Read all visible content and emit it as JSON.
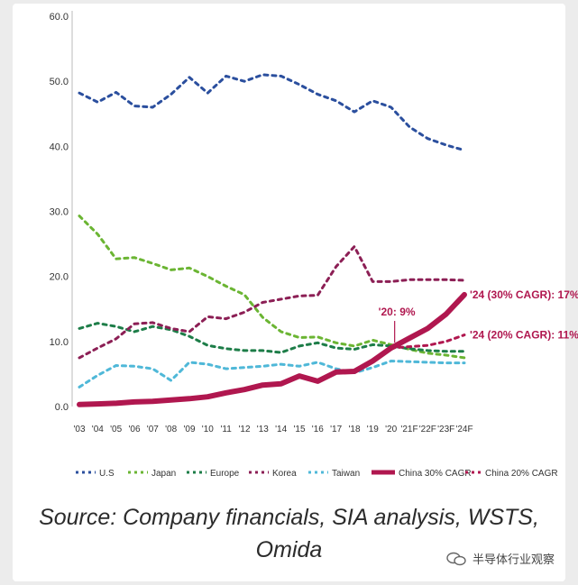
{
  "chart_data": {
    "type": "line",
    "title": "",
    "xlabel": "",
    "ylabel": "",
    "ylim": [
      0,
      60
    ],
    "yticks": [
      "0.0",
      "10.0",
      "20.0",
      "30.0",
      "40.0",
      "50.0",
      "60.0"
    ],
    "categories": [
      "'03",
      "'04",
      "'05",
      "'06",
      "'07",
      "'08",
      "'09",
      "'10",
      "'11",
      "'12",
      "'13",
      "'14",
      "'15",
      "'16",
      "'17",
      "'18",
      "'19",
      "'20",
      "'21F",
      "'22F",
      "'23F",
      "'24F"
    ],
    "grid": false,
    "legend_position": "bottom",
    "series": [
      {
        "name": "U.S",
        "color": "#2b4f9e",
        "style": "dashed",
        "width": 3,
        "values": [
          48.2,
          46.8,
          48.3,
          46.2,
          46.0,
          48.0,
          50.6,
          48.2,
          50.8,
          50.0,
          51.0,
          50.8,
          49.5,
          48.0,
          47.0,
          45.3,
          47.0,
          46.0,
          43.0,
          41.2,
          40.2,
          39.4
        ]
      },
      {
        "name": "Japan",
        "color": "#6bb533",
        "style": "dashed",
        "width": 3,
        "values": [
          29.3,
          26.5,
          22.7,
          22.9,
          22.0,
          21.0,
          21.3,
          20.0,
          18.5,
          17.2,
          13.7,
          11.5,
          10.6,
          10.7,
          9.8,
          9.3,
          10.2,
          9.5,
          8.8,
          8.2,
          7.9,
          7.5
        ]
      },
      {
        "name": "Europe",
        "color": "#1d7d48",
        "style": "dashed",
        "width": 3,
        "values": [
          12.0,
          12.8,
          12.3,
          11.5,
          12.3,
          11.8,
          10.8,
          9.4,
          8.9,
          8.6,
          8.6,
          8.3,
          9.3,
          9.8,
          9.0,
          8.8,
          9.5,
          9.3,
          8.9,
          8.6,
          8.5,
          8.5
        ]
      },
      {
        "name": "Korea",
        "color": "#8c1f55",
        "style": "dashed",
        "width": 3,
        "values": [
          7.5,
          9.0,
          10.4,
          12.7,
          12.9,
          12.0,
          11.5,
          13.8,
          13.5,
          14.5,
          16.0,
          16.5,
          17.0,
          17.1,
          21.5,
          24.6,
          19.2,
          19.2,
          19.5,
          19.5,
          19.5,
          19.4
        ]
      },
      {
        "name": "Taiwan",
        "color": "#4fb8d8",
        "style": "dashed",
        "width": 3,
        "values": [
          3.0,
          4.8,
          6.3,
          6.2,
          5.8,
          4.0,
          6.8,
          6.5,
          5.8,
          6.0,
          6.2,
          6.5,
          6.2,
          6.8,
          5.8,
          5.2,
          6.0,
          7.0,
          6.9,
          6.8,
          6.7,
          6.7
        ]
      },
      {
        "name": "China 30% CAGR",
        "color": "#b0174f",
        "style": "solid",
        "width": 6,
        "values": [
          0.3,
          0.4,
          0.5,
          0.7,
          0.8,
          1.0,
          1.2,
          1.5,
          2.1,
          2.6,
          3.3,
          3.5,
          4.7,
          3.9,
          5.3,
          5.4,
          7.0,
          9.0,
          10.5,
          12.0,
          14.2,
          17.2
        ]
      },
      {
        "name": "China 20% CAGR",
        "color": "#b0174f",
        "style": "dashed",
        "width": 3,
        "from_index": 17,
        "values": [
          null,
          null,
          null,
          null,
          null,
          null,
          null,
          null,
          null,
          null,
          null,
          null,
          null,
          null,
          null,
          null,
          null,
          9.0,
          9.2,
          9.4,
          10.0,
          11.0
        ]
      }
    ],
    "annotations": [
      {
        "text": "'20: 9%",
        "x": "'20",
        "y": 9.0
      },
      {
        "text": "'24 (30% CAGR): 17%",
        "x": "'24F",
        "y": 17.2
      },
      {
        "text": "'24 (20% CAGR): 11%",
        "x": "'24F",
        "y": 11.0
      }
    ]
  },
  "source_text": "Source: Company financials, SIA analysis, WSTS, Omida",
  "watermark": "半导体行业观察"
}
